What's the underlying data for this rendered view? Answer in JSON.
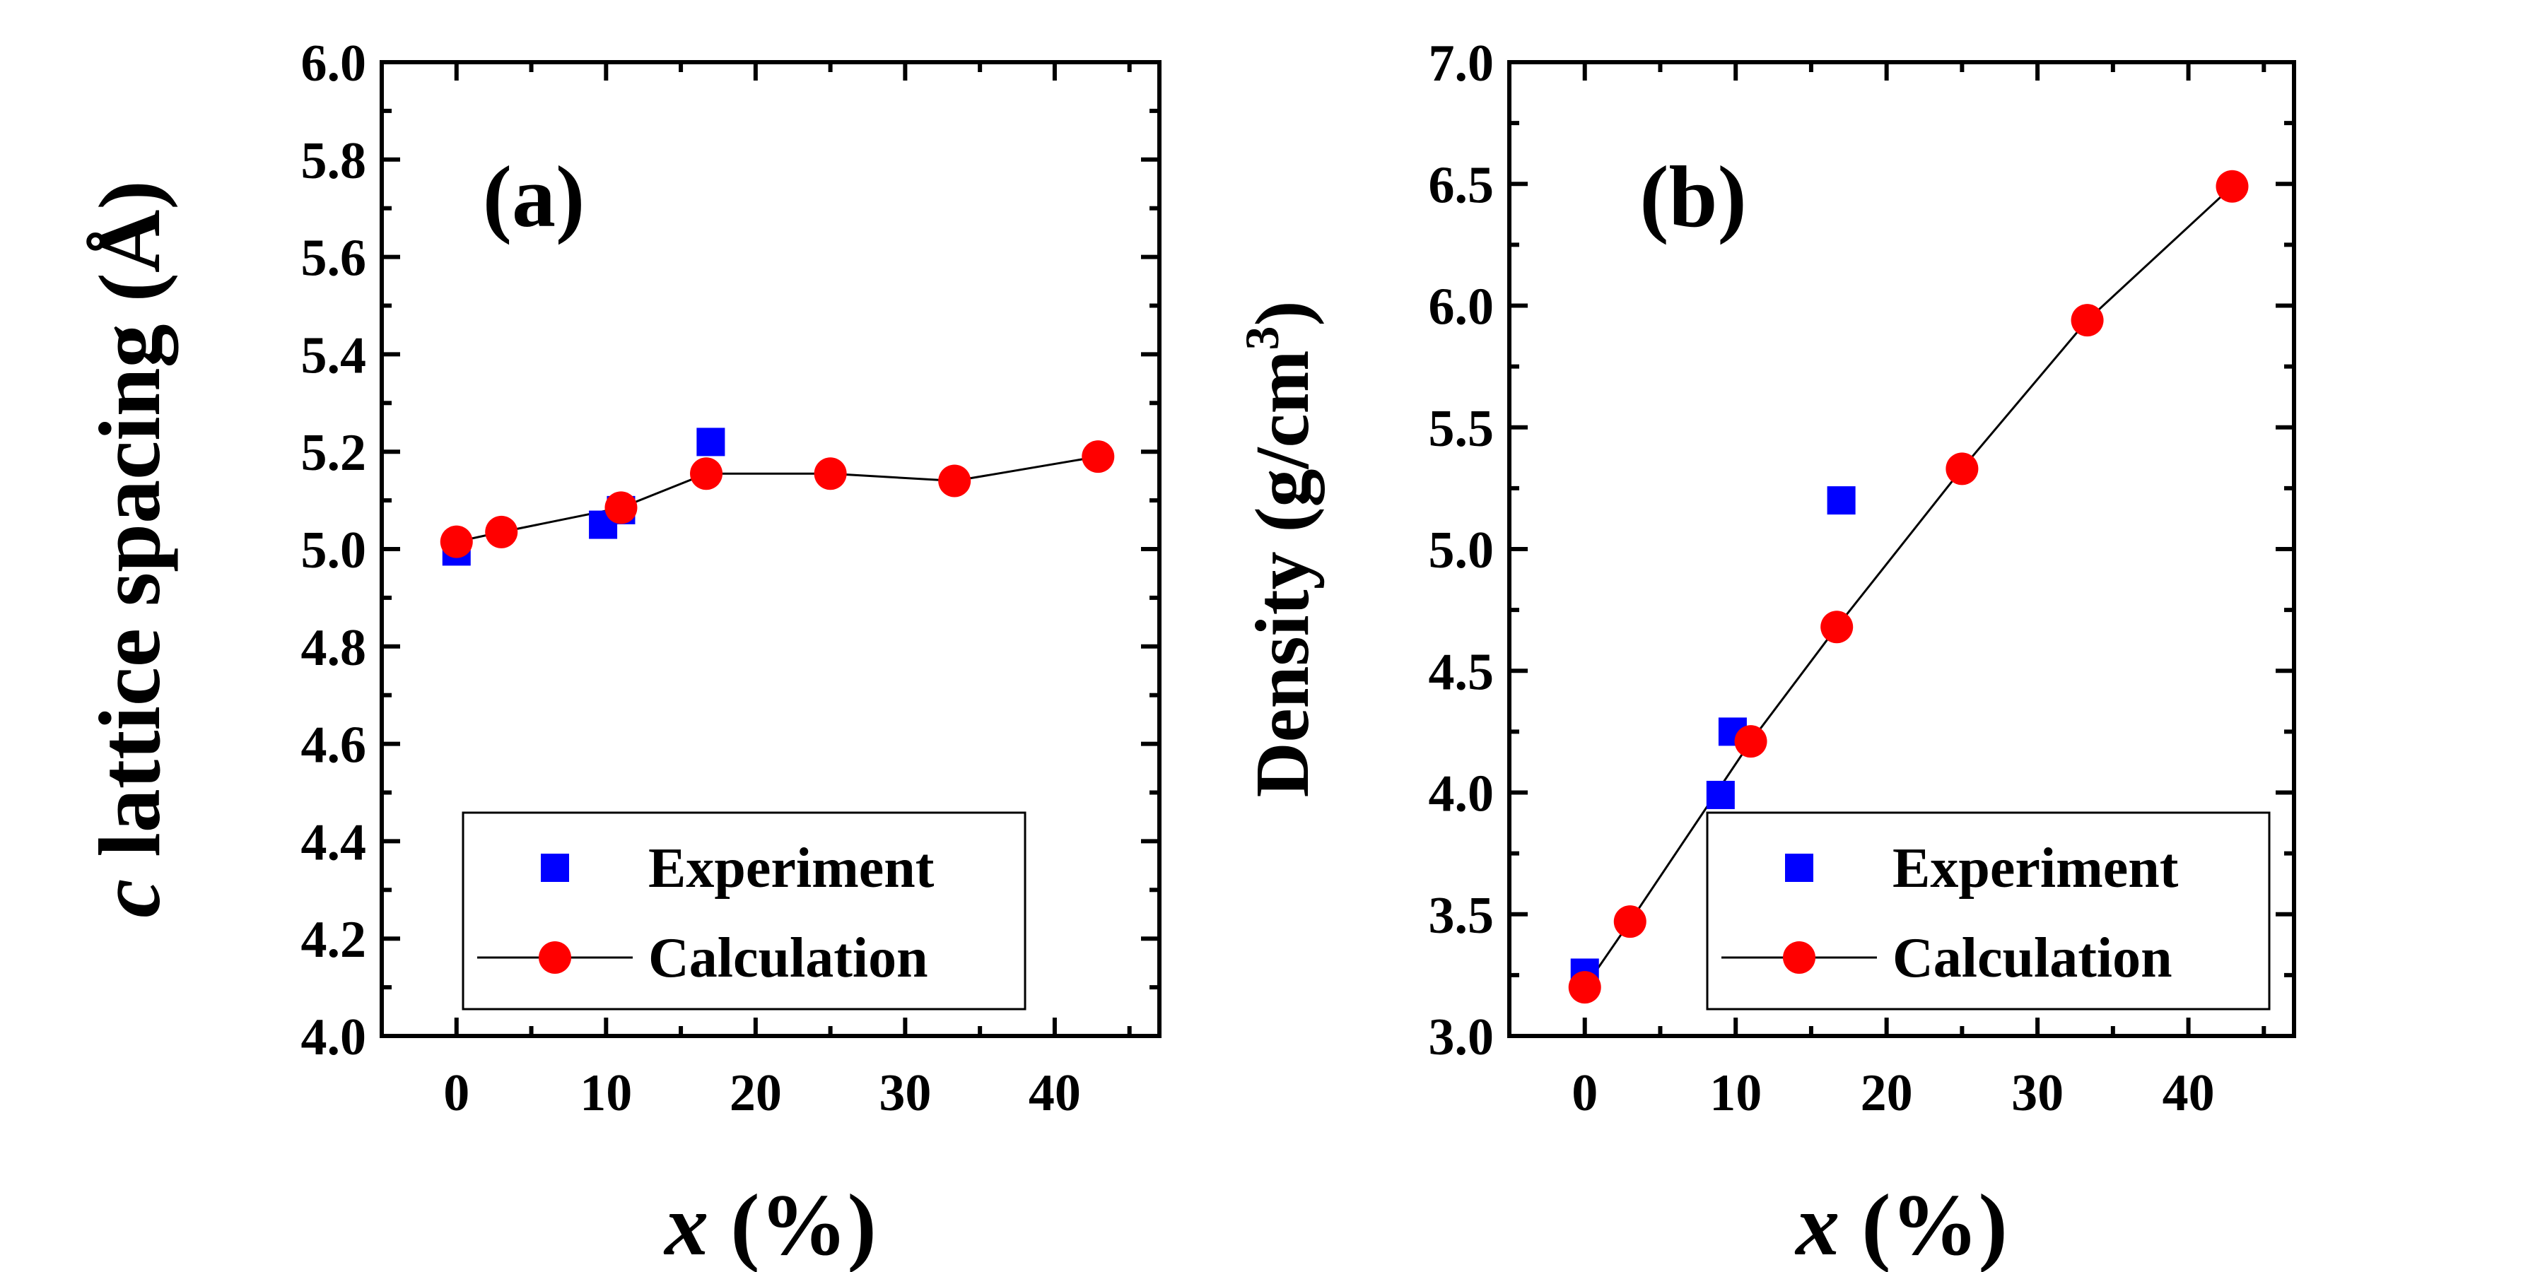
{
  "chart_data": [
    {
      "type": "scatter",
      "panel_label": "(a)",
      "xlabel_var": "x",
      "xlabel_unit": " (%)",
      "ylabel_var": "c",
      "ylabel_text": " lattice spacing (Å)",
      "xlim": [
        -5,
        47
      ],
      "ylim": [
        4.0,
        6.0
      ],
      "x_ticks": [
        0,
        10,
        20,
        30,
        40
      ],
      "y_ticks": [
        4.0,
        4.2,
        4.4,
        4.6,
        4.8,
        5.0,
        5.2,
        5.4,
        5.6,
        5.8,
        6.0
      ],
      "x_tick_labels": [
        "0",
        "10",
        "20",
        "30",
        "40"
      ],
      "y_tick_labels": [
        "4.0",
        "4.2",
        "4.4",
        "4.6",
        "4.8",
        "5.0",
        "5.2",
        "5.4",
        "5.6",
        "5.8",
        "6.0"
      ],
      "grid": false,
      "legend_position": "bottom-right",
      "series": [
        {
          "name": "Experiment",
          "marker": "square",
          "color": "#0000ff",
          "line": false,
          "x": [
            0,
            9.8,
            11,
            17
          ],
          "y": [
            4.995,
            5.05,
            5.08,
            5.22
          ]
        },
        {
          "name": "Calculation",
          "marker": "circle",
          "color": "#ff0000",
          "line": true,
          "x": [
            0,
            3,
            11,
            16.7,
            25,
            33.3,
            42.9
          ],
          "y": [
            5.015,
            5.035,
            5.085,
            5.155,
            5.155,
            5.14,
            5.19
          ]
        }
      ]
    },
    {
      "type": "scatter",
      "panel_label": "(b)",
      "xlabel_var": "x",
      "xlabel_unit": " (%)",
      "ylabel_main": "Density (g/cm",
      "ylabel_sup": "3",
      "ylabel_end": ")",
      "xlim": [
        -5,
        47
      ],
      "ylim": [
        3.0,
        7.0
      ],
      "x_ticks": [
        0,
        10,
        20,
        30,
        40
      ],
      "y_ticks": [
        3.0,
        3.5,
        4.0,
        4.5,
        5.0,
        5.5,
        6.0,
        6.5,
        7.0
      ],
      "x_tick_labels": [
        "0",
        "10",
        "20",
        "30",
        "40"
      ],
      "y_tick_labels": [
        "3.0",
        "3.5",
        "4.0",
        "4.5",
        "5.0",
        "5.5",
        "6.0",
        "6.5",
        "7.0"
      ],
      "grid": false,
      "legend_position": "bottom-right",
      "series": [
        {
          "name": "Experiment",
          "marker": "square",
          "color": "#0000ff",
          "line": false,
          "x": [
            0,
            9,
            9.8,
            17
          ],
          "y": [
            3.26,
            3.99,
            4.25,
            5.2
          ]
        },
        {
          "name": "Calculation",
          "marker": "circle",
          "color": "#ff0000",
          "line": true,
          "x": [
            0,
            3,
            11,
            16.7,
            25,
            33.3,
            42.9
          ],
          "y": [
            3.2,
            3.47,
            4.21,
            4.68,
            5.33,
            5.94,
            6.49
          ]
        }
      ]
    }
  ]
}
